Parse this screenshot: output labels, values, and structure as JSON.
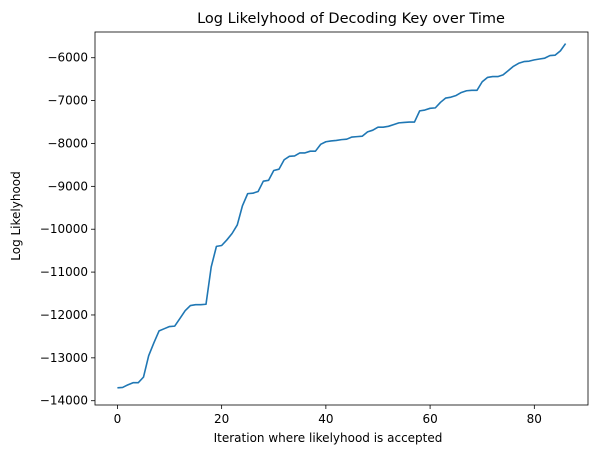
{
  "chart_data": {
    "type": "line",
    "title": "Log Likelyhood of Decoding Key over Time",
    "xlabel": "Iteration where likelyhood is accepted",
    "ylabel": "Log Likelyhood",
    "xlim": [
      -4.3,
      90.3
    ],
    "ylim": [
      -14100,
      -5400
    ],
    "xticks": [
      0,
      20,
      40,
      60,
      80
    ],
    "yticks": [
      -14000,
      -13000,
      -12000,
      -11000,
      -10000,
      -9000,
      -8000,
      -7000,
      -6000
    ],
    "grid": false,
    "colors": {
      "line": "#1f77b4",
      "axis": "#000000"
    },
    "series": [
      {
        "values": [
          -13700,
          -13690,
          -13630,
          -13580,
          -13580,
          -13450,
          -12950,
          -12650,
          -12370,
          -12320,
          -12270,
          -12260,
          -12080,
          -11900,
          -11780,
          -11760,
          -11760,
          -11750,
          -10880,
          -10400,
          -10380,
          -10250,
          -10100,
          -9900,
          -9450,
          -9170,
          -9160,
          -9120,
          -8880,
          -8860,
          -8630,
          -8600,
          -8380,
          -8300,
          -8290,
          -8220,
          -8220,
          -8180,
          -8180,
          -8020,
          -7960,
          -7940,
          -7930,
          -7910,
          -7900,
          -7850,
          -7840,
          -7830,
          -7730,
          -7690,
          -7620,
          -7620,
          -7600,
          -7560,
          -7520,
          -7510,
          -7500,
          -7500,
          -7240,
          -7220,
          -7180,
          -7170,
          -7040,
          -6940,
          -6920,
          -6880,
          -6810,
          -6770,
          -6760,
          -6760,
          -6560,
          -6460,
          -6440,
          -6440,
          -6400,
          -6300,
          -6200,
          -6130,
          -6090,
          -6080,
          -6050,
          -6030,
          -6010,
          -5950,
          -5940,
          -5840,
          -5670
        ]
      }
    ]
  }
}
